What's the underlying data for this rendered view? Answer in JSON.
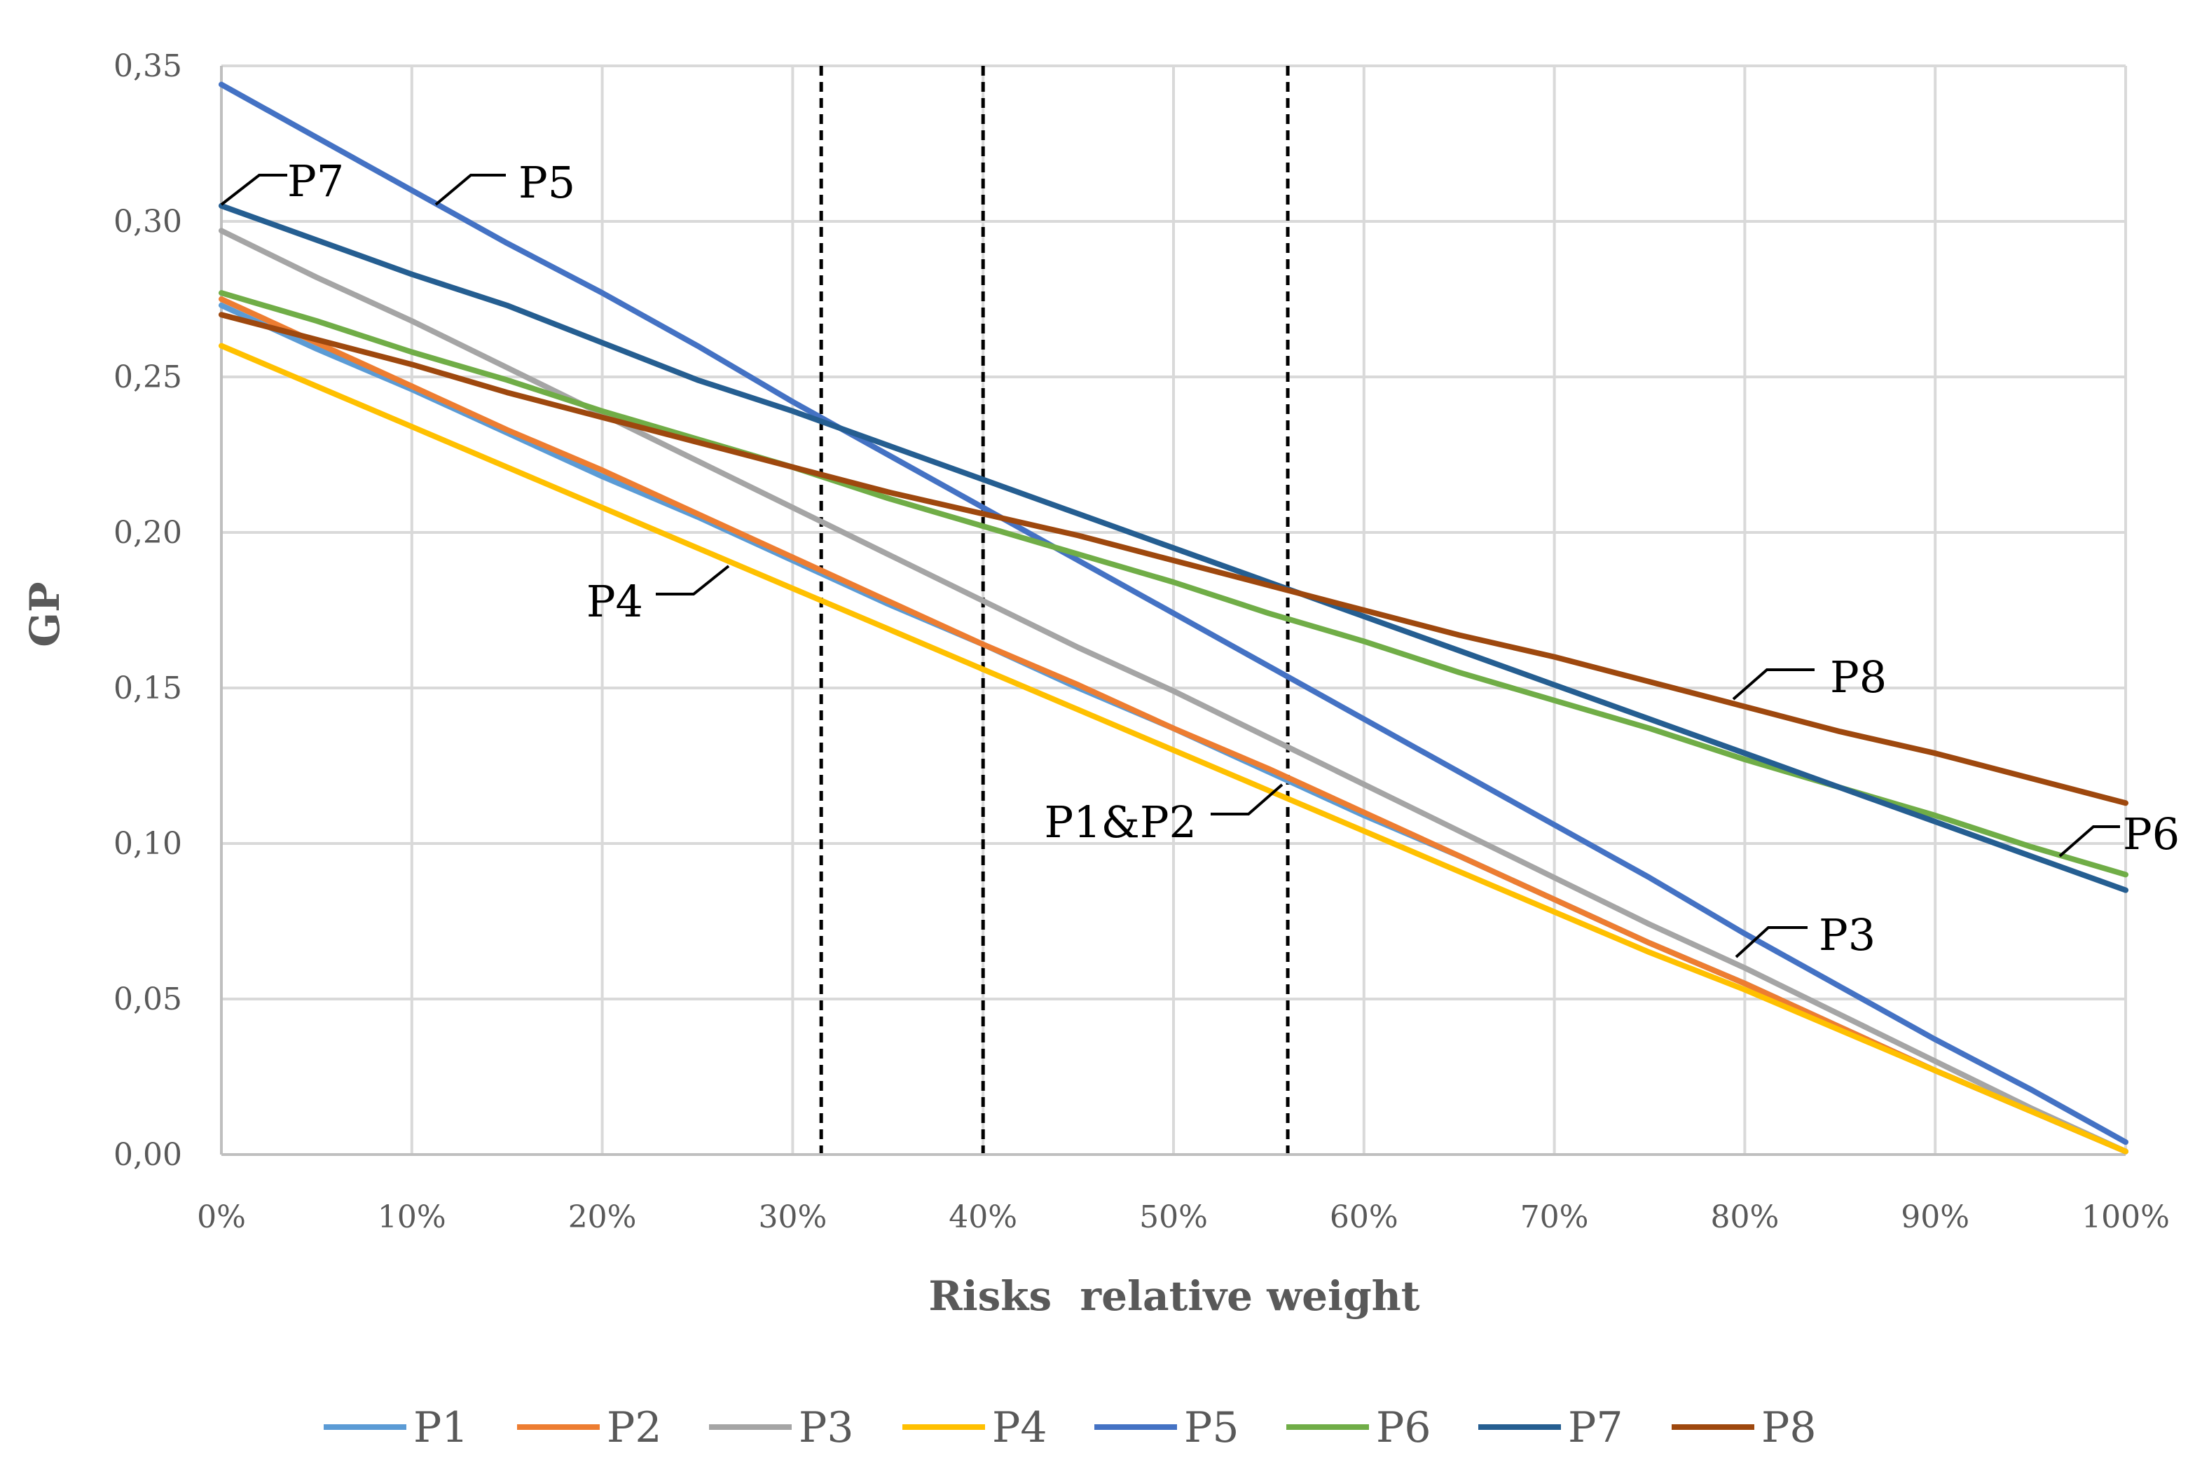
{
  "chart_data": {
    "type": "line",
    "title": "",
    "xlabel": "Risks  relative weight",
    "ylabel": "GP",
    "xlim": [
      0,
      100
    ],
    "ylim": [
      0,
      0.35
    ],
    "grid": true,
    "legend_position": "bottom",
    "x_ticks": [
      "0%",
      "10%",
      "20%",
      "30%",
      "40%",
      "50%",
      "60%",
      "70%",
      "80%",
      "90%",
      "100%"
    ],
    "y_ticks": [
      "0,00",
      "0,05",
      "0,10",
      "0,15",
      "0,20",
      "0,25",
      "0,30",
      "0,35"
    ],
    "y_tick_values": [
      0,
      0.05,
      0.1,
      0.15,
      0.2,
      0.25,
      0.3,
      0.35
    ],
    "x": [
      0,
      5,
      10,
      15,
      20,
      25,
      30,
      35,
      40,
      45,
      50,
      55,
      60,
      65,
      70,
      75,
      80,
      85,
      90,
      95,
      100
    ],
    "series": [
      {
        "name": "P1",
        "color": "#5B9BD5",
        "values": [
          0.273,
          0.259,
          0.246,
          0.232,
          0.218,
          0.205,
          0.191,
          0.177,
          0.164,
          0.15,
          0.137,
          0.123,
          0.109,
          0.096,
          0.082,
          0.068,
          0.055,
          0.041,
          0.027,
          0.014,
          0.001
        ]
      },
      {
        "name": "P2",
        "color": "#ED7D31",
        "values": [
          0.275,
          0.261,
          0.247,
          0.233,
          0.22,
          0.206,
          0.192,
          0.178,
          0.164,
          0.151,
          0.137,
          0.124,
          0.11,
          0.096,
          0.082,
          0.068,
          0.055,
          0.041,
          0.027,
          0.014,
          0.001
        ]
      },
      {
        "name": "P3",
        "color": "#A5A5A5",
        "values": [
          0.297,
          0.282,
          0.268,
          0.253,
          0.238,
          0.223,
          0.208,
          0.193,
          0.178,
          0.163,
          0.149,
          0.134,
          0.119,
          0.104,
          0.089,
          0.074,
          0.06,
          0.045,
          0.03,
          0.015,
          0.001
        ]
      },
      {
        "name": "P4",
        "color": "#FFC000",
        "values": [
          0.26,
          0.247,
          0.234,
          0.221,
          0.208,
          0.195,
          0.182,
          0.169,
          0.156,
          0.143,
          0.13,
          0.117,
          0.104,
          0.091,
          0.078,
          0.065,
          0.053,
          0.04,
          0.027,
          0.014,
          0.001
        ]
      },
      {
        "name": "P5",
        "color": "#4472C4",
        "values": [
          0.344,
          0.327,
          0.31,
          0.293,
          0.277,
          0.26,
          0.242,
          0.225,
          0.208,
          0.191,
          0.174,
          0.157,
          0.14,
          0.123,
          0.106,
          0.089,
          0.071,
          0.054,
          0.037,
          0.021,
          0.004
        ]
      },
      {
        "name": "P6",
        "color": "#70AD47",
        "values": [
          0.277,
          0.268,
          0.258,
          0.249,
          0.239,
          0.23,
          0.221,
          0.211,
          0.202,
          0.193,
          0.184,
          0.174,
          0.165,
          0.155,
          0.146,
          0.137,
          0.127,
          0.118,
          0.109,
          0.099,
          0.09
        ]
      },
      {
        "name": "P7",
        "color": "#255E91",
        "values": [
          0.305,
          0.294,
          0.283,
          0.273,
          0.261,
          0.249,
          0.239,
          0.228,
          0.217,
          0.206,
          0.195,
          0.184,
          0.173,
          0.162,
          0.151,
          0.14,
          0.129,
          0.118,
          0.107,
          0.096,
          0.085
        ]
      },
      {
        "name": "P8",
        "color": "#9E480E",
        "values": [
          0.27,
          0.262,
          0.254,
          0.245,
          0.237,
          0.229,
          0.221,
          0.213,
          0.206,
          0.199,
          0.191,
          0.183,
          0.175,
          0.167,
          0.16,
          0.152,
          0.144,
          0.136,
          0.129,
          0.121,
          0.113
        ]
      }
    ],
    "reference_lines": [
      31.5,
      40,
      56
    ],
    "annotations": [
      "P7",
      "P5",
      "P4",
      "P1&P2",
      "P8",
      "P6",
      "P3"
    ]
  }
}
